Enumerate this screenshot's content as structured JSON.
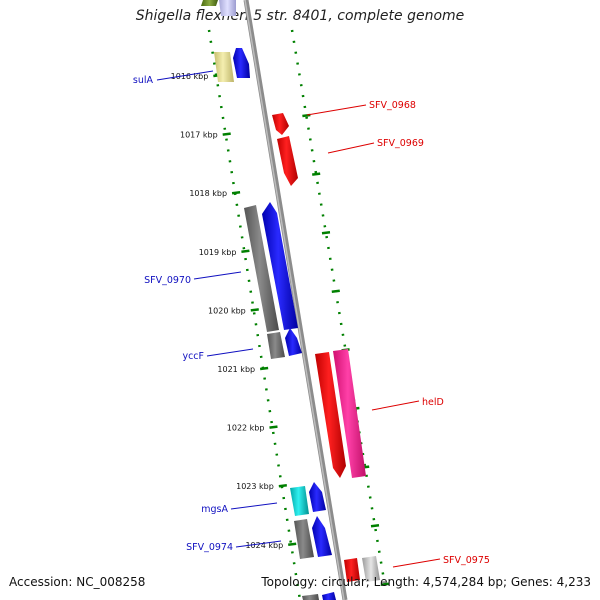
{
  "title": "Shigella flexneri 5 str. 8401, complete genome",
  "footer": {
    "accession": "Accession: NC_008258",
    "summary": "Topology: circular; Length: 4,574,284 bp; Genes: 4,233"
  },
  "colors": {
    "backbone": "#8c8c8c",
    "tick": "#008000",
    "forward_label": "#1010c0",
    "reverse_label": "#dd0000"
  },
  "kbp_labels": [
    "1016 kbp",
    "1017 kbp",
    "1018 kbp",
    "1019 kbp",
    "1020 kbp",
    "1021 kbp",
    "1022 kbp",
    "1023 kbp",
    "1024 kbp"
  ],
  "gene_labels": {
    "forward": [
      "sulA",
      "SFV_0970",
      "yccF",
      "mgsA",
      "SFV_0974"
    ],
    "reverse": [
      "SFV_0968",
      "SFV_0969",
      "helD",
      "SFV_0975"
    ]
  },
  "genes": [
    {
      "name": "sulA",
      "strand": "+",
      "color": "blue"
    },
    {
      "name": "SFV_0970",
      "strand": "+",
      "color": "blue"
    },
    {
      "name": "yccF",
      "strand": "+",
      "color": "blue"
    },
    {
      "name": "mgsA",
      "strand": "+",
      "color": "blue"
    },
    {
      "name": "SFV_0974",
      "strand": "+",
      "color": "blue"
    },
    {
      "name": "SFV_0968",
      "strand": "-",
      "color": "red"
    },
    {
      "name": "SFV_0969",
      "strand": "-",
      "color": "red"
    },
    {
      "name": "helD",
      "strand": "-",
      "color": "red"
    },
    {
      "name": "SFV_0975",
      "strand": "-",
      "color": "red"
    }
  ]
}
